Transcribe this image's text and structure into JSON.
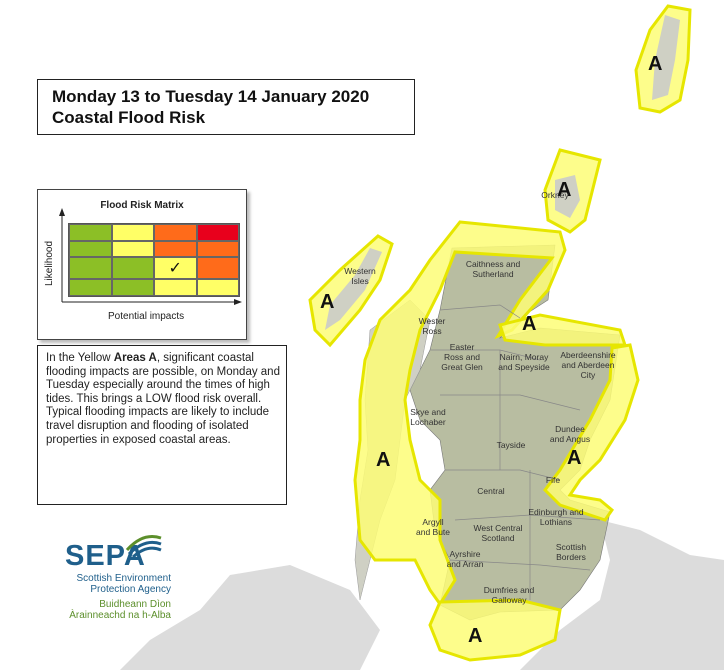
{
  "title": {
    "line1": "Monday 13 to Tuesday 14 January 2020",
    "line2": "Coastal Flood Risk"
  },
  "matrix": {
    "title": "Flood Risk Matrix",
    "y_axis_label": "Likelihood",
    "x_axis_label": "Potential impacts",
    "rows": [
      [
        "#8cbf26",
        "#ffff66",
        "#ff6b1a",
        "#e8001c"
      ],
      [
        "#8cbf26",
        "#ffff66",
        "#ff6b1a",
        "#ff6b1a"
      ],
      [
        "#8cbf26",
        "#8cbf26",
        "#ffff66",
        "#ff6b1a"
      ],
      [
        "#8cbf26",
        "#8cbf26",
        "#ffff66",
        "#ffff66"
      ]
    ],
    "checked_cell": {
      "row": 2,
      "col": 2
    },
    "check_mark": "✓"
  },
  "info": {
    "before_bold": "In the Yellow ",
    "bold": "Areas A",
    "after_bold": ", significant coastal flooding impacts are possible, on Monday and Tuesday especially around the times of high tides. This brings a LOW flood risk overall. Typical flooding impacts are likely to include travel disruption and flooding of isolated properties in exposed coastal areas."
  },
  "logo": {
    "name": "SEPA",
    "line1": "Scottish Environment",
    "line2": "Protection Agency",
    "gaelic1": "Buidheann Dìon",
    "gaelic2": "Àrainneachd na h-Alba"
  },
  "colors": {
    "land": "#dcdcdc",
    "scotland": "#b8bda1",
    "warning_fill": "#fdfd77",
    "warning_stroke": "#e6e600",
    "sea": "#ffffff"
  },
  "area_label": "A",
  "region_labels": {
    "caithness": [
      "Caithness and",
      "Sutherland"
    ],
    "western_isles": [
      "Western",
      "Isles"
    ],
    "orkney": "Orkney",
    "shetland": "",
    "wester_ross": [
      "Wester",
      "Ross"
    ],
    "easter_ross": [
      "Easter",
      "Ross and",
      "Great Glen"
    ],
    "nairn": [
      "Nairn, Moray",
      "and Speyside"
    ],
    "aberdeenshire": [
      "Aberdeenshire",
      "and Aberdeen",
      "City"
    ],
    "skye": [
      "Skye and",
      "Lochaber"
    ],
    "tayside": "Tayside",
    "dundee": [
      "Dundee",
      "and Angus"
    ],
    "fife": "Fife",
    "central": "Central",
    "argyll": [
      "Argyll",
      "and Bute"
    ],
    "lothians": [
      "Edinburgh and",
      "Lothians"
    ],
    "west_central": [
      "West Central",
      "Scotland"
    ],
    "ayrshire": [
      "Ayrshire",
      "and Arran"
    ],
    "borders": [
      "Scottish",
      "Borders"
    ],
    "dumfries": [
      "Dumfries and",
      "Galloway"
    ]
  }
}
